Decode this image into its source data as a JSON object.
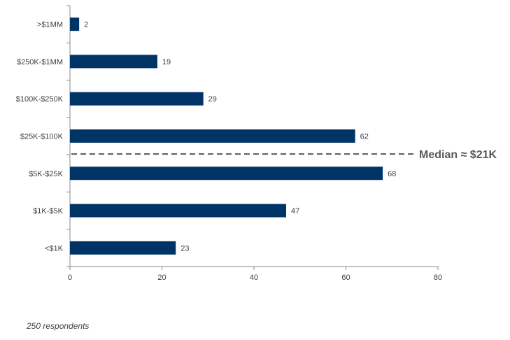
{
  "chart_data": {
    "type": "bar",
    "orientation": "horizontal",
    "categories": [
      ">$1MM",
      "$250K-$1MM",
      "$100K-$250K",
      "$25K-$100K",
      "$5K-$25K",
      "$1K-$5K",
      "<$1K"
    ],
    "values": [
      2,
      19,
      29,
      62,
      68,
      47,
      23
    ],
    "xlim": [
      0,
      80
    ],
    "xticks": [
      0,
      20,
      40,
      60,
      80
    ],
    "bar_color": "#003366",
    "grid": false,
    "median": {
      "label": "Median ≈ $21K",
      "between": [
        "$25K-$100K",
        "$5K-$25K"
      ],
      "color": "#595959"
    }
  },
  "footnote": "250 respondents"
}
